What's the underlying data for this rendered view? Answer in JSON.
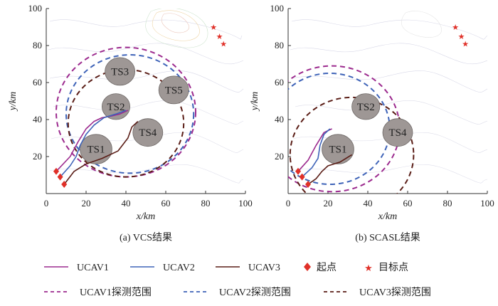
{
  "chart_data": [
    {
      "type": "scatter",
      "caption": "(a) VCS结果",
      "xlabel": "x/km",
      "ylabel": "y/km",
      "xlim": [
        0,
        100
      ],
      "ylim": [
        0,
        100
      ],
      "xticks": [
        "0",
        "20",
        "40",
        "60",
        "80",
        "100"
      ],
      "yticks": [
        "20",
        "40",
        "60",
        "80",
        "100"
      ],
      "threats": [
        {
          "label": "TS1",
          "x": 25,
          "y": 24,
          "r": 8
        },
        {
          "label": "TS2",
          "x": 35,
          "y": 47,
          "r": 7
        },
        {
          "label": "TS3",
          "x": 37,
          "y": 66,
          "r": 7.5
        },
        {
          "label": "TS4",
          "x": 51,
          "y": 33,
          "r": 7.5
        },
        {
          "label": "TS5",
          "x": 64,
          "y": 56,
          "r": 7.5
        }
      ],
      "start_points": [
        [
          5,
          12
        ],
        [
          7,
          9
        ],
        [
          9,
          5
        ]
      ],
      "target_points": [
        [
          84,
          90
        ],
        [
          87,
          85
        ],
        [
          89,
          81
        ]
      ],
      "paths": [
        {
          "key": "UCAV1",
          "color": "#9c2a8e",
          "points": [
            [
              5,
              12
            ],
            [
              12,
              20
            ],
            [
              16,
              28
            ],
            [
              20,
              35
            ],
            [
              24,
              39
            ],
            [
              28,
              41
            ],
            [
              33,
              42
            ],
            [
              37,
              43
            ],
            [
              41,
              45
            ]
          ]
        },
        {
          "key": "UCAV2",
          "color": "#3e63b8",
          "points": [
            [
              7,
              9
            ],
            [
              12,
              15
            ],
            [
              15,
              20
            ],
            [
              17,
              26
            ],
            [
              20,
              32
            ],
            [
              24,
              37
            ],
            [
              29,
              41
            ],
            [
              35,
              43
            ],
            [
              40,
              45
            ]
          ]
        },
        {
          "key": "UCAV3",
          "color": "#5a1d16",
          "points": [
            [
              9,
              5
            ],
            [
              14,
              12
            ],
            [
              20,
              16
            ],
            [
              28,
              19
            ],
            [
              36,
              23
            ],
            [
              41,
              30
            ],
            [
              43,
              36
            ],
            [
              46,
              39
            ]
          ]
        }
      ],
      "ranges": [
        {
          "key": "UCAV1",
          "color": "#9c2a8e",
          "cx": 40,
          "cy": 44,
          "r": 35
        },
        {
          "key": "UCAV2",
          "color": "#3e63b8",
          "cx": 42,
          "cy": 43,
          "r": 32
        },
        {
          "key": "UCAV3",
          "color": "#5a1d16",
          "cx": 40,
          "cy": 38,
          "r": 29
        }
      ]
    },
    {
      "type": "scatter",
      "caption": "(b) SCASL结果",
      "xlabel": "x/km",
      "ylabel": "y/km",
      "xlim": [
        0,
        100
      ],
      "ylim": [
        0,
        100
      ],
      "xticks": [
        "0",
        "20",
        "40",
        "60",
        "80",
        "100"
      ],
      "yticks": [
        "20",
        "40",
        "60",
        "80",
        "100"
      ],
      "threats": [
        {
          "label": "TS1",
          "x": 25,
          "y": 24,
          "r": 8
        },
        {
          "label": "TS2",
          "x": 39,
          "y": 47,
          "r": 7
        },
        {
          "label": "TS4",
          "x": 55,
          "y": 33,
          "r": 7.5
        }
      ],
      "start_points": [
        [
          5,
          12
        ],
        [
          7,
          9
        ],
        [
          10,
          5
        ]
      ],
      "target_points": [
        [
          84,
          90
        ],
        [
          87,
          85
        ],
        [
          89,
          81
        ]
      ],
      "paths": [
        {
          "key": "UCAV1",
          "color": "#9c2a8e",
          "points": [
            [
              5,
              12
            ],
            [
              10,
              18
            ],
            [
              14,
              26
            ],
            [
              18,
              33
            ],
            [
              22,
              35
            ]
          ]
        },
        {
          "key": "UCAV2",
          "color": "#3e63b8",
          "points": [
            [
              7,
              9
            ],
            [
              12,
              14
            ],
            [
              15,
              19
            ],
            [
              16,
              26
            ],
            [
              18,
              32
            ],
            [
              21,
              35
            ]
          ]
        },
        {
          "key": "UCAV3",
          "color": "#5a1d16",
          "points": [
            [
              10,
              5
            ],
            [
              14,
              8
            ],
            [
              17,
              12
            ],
            [
              20,
              15
            ],
            [
              26,
              17
            ],
            [
              32,
              21
            ]
          ]
        }
      ],
      "ranges": [
        {
          "key": "UCAV1",
          "color": "#9c2a8e",
          "cx": 22,
          "cy": 35,
          "r": 34
        },
        {
          "key": "UCAV2",
          "color": "#3e63b8",
          "cx": 21,
          "cy": 35,
          "r": 30
        },
        {
          "key": "UCAV3",
          "color": "#5a1d16",
          "cx": 32,
          "cy": 21,
          "r": 31
        }
      ]
    }
  ],
  "legend": {
    "paths": [
      {
        "label": "UCAV1",
        "color": "#9c2a8e"
      },
      {
        "label": "UCAV2",
        "color": "#3e63b8"
      },
      {
        "label": "UCAV3",
        "color": "#5a1d16"
      }
    ],
    "start_label": "起点",
    "target_label": "目标点",
    "ranges": [
      {
        "label": "UCAV1探测范围",
        "color": "#9c2a8e"
      },
      {
        "label": "UCAV2探测范围",
        "color": "#3e63b8"
      },
      {
        "label": "UCAV3探测范围",
        "color": "#5a1d16"
      }
    ],
    "marker_color": "#e03028"
  }
}
